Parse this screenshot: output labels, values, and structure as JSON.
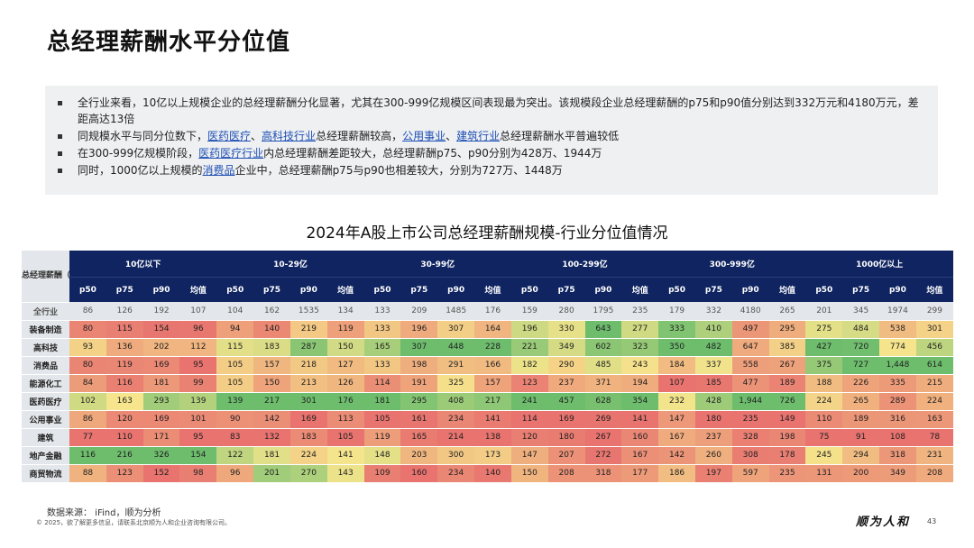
{
  "page_title": "总经理薪酬水平分位值",
  "bullets": [
    {
      "parts": [
        {
          "t": "全行业来看，10亿以上规模企业的总经理薪酬分化显著，尤其在300-999亿规模区间表现最为突出。该规模段企业总经理薪酬的p75和p90值分别达到332万元和4180万元，差距高达13倍",
          "hl": false
        }
      ]
    },
    {
      "parts": [
        {
          "t": "同规模水平与同分位数下，",
          "hl": false
        },
        {
          "t": "医药医疗",
          "hl": true
        },
        {
          "t": "、",
          "hl": false
        },
        {
          "t": "高科技行业",
          "hl": true
        },
        {
          "t": "总经理薪酬较高，",
          "hl": false
        },
        {
          "t": "公用事业",
          "hl": true
        },
        {
          "t": "、",
          "hl": false
        },
        {
          "t": "建筑行业",
          "hl": true
        },
        {
          "t": "总经理薪酬水平普遍较低",
          "hl": false
        }
      ]
    },
    {
      "parts": [
        {
          "t": "在300-999亿规模阶段，",
          "hl": false
        },
        {
          "t": "医药医疗行业",
          "hl": true
        },
        {
          "t": "内总经理薪酬差距较大，总经理薪酬p75、p90分别为428万、1944万",
          "hl": false
        }
      ]
    },
    {
      "parts": [
        {
          "t": "同时，1000亿以上规模的",
          "hl": false
        },
        {
          "t": "消费品",
          "hl": true
        },
        {
          "t": "企业中，总经理薪酬p75与p90也相差较大，分别为727万、1448万",
          "hl": false
        }
      ]
    }
  ],
  "table_title": "2024年A股上市公司总经理薪酬规模-行业分位值情况",
  "corner_label": "总经理薪酬（万元）",
  "groups": [
    "10亿以下",
    "10-29亿",
    "30-99亿",
    "100-299亿",
    "300-999亿",
    "1000亿以上"
  ],
  "metrics": [
    "p50",
    "p75",
    "p90",
    "均值"
  ],
  "all_row": {
    "label": "全行业",
    "values": [
      "86",
      "126",
      "192",
      "107",
      "104",
      "162",
      "1535",
      "134",
      "133",
      "209",
      "1485",
      "176",
      "159",
      "280",
      "1795",
      "235",
      "179",
      "332",
      "4180",
      "265",
      "201",
      "345",
      "1974",
      "299"
    ]
  },
  "rows": [
    {
      "label": "装备制造",
      "values": [
        "80",
        "115",
        "154",
        "96",
        "94",
        "140",
        "219",
        "119",
        "133",
        "196",
        "307",
        "164",
        "196",
        "330",
        "643",
        "277",
        "333",
        "410",
        "497",
        "295",
        "275",
        "484",
        "538",
        "301"
      ]
    },
    {
      "label": "高科技",
      "values": [
        "93",
        "136",
        "202",
        "112",
        "115",
        "183",
        "287",
        "150",
        "165",
        "307",
        "448",
        "228",
        "221",
        "349",
        "602",
        "323",
        "350",
        "482",
        "647",
        "385",
        "427",
        "720",
        "774",
        "456"
      ]
    },
    {
      "label": "消费品",
      "values": [
        "80",
        "119",
        "169",
        "95",
        "105",
        "157",
        "218",
        "127",
        "133",
        "198",
        "291",
        "166",
        "182",
        "290",
        "485",
        "243",
        "184",
        "337",
        "558",
        "267",
        "375",
        "727",
        "1,448",
        "614"
      ]
    },
    {
      "label": "能源化工",
      "values": [
        "84",
        "116",
        "181",
        "99",
        "105",
        "150",
        "213",
        "126",
        "114",
        "191",
        "325",
        "157",
        "123",
        "237",
        "371",
        "194",
        "107",
        "185",
        "477",
        "189",
        "188",
        "226",
        "335",
        "215"
      ]
    },
    {
      "label": "医药医疗",
      "values": [
        "102",
        "163",
        "293",
        "139",
        "139",
        "217",
        "301",
        "176",
        "181",
        "295",
        "408",
        "217",
        "241",
        "457",
        "628",
        "354",
        "232",
        "428",
        "1,944",
        "726",
        "224",
        "265",
        "289",
        "224"
      ]
    },
    {
      "label": "公用事业",
      "values": [
        "86",
        "120",
        "169",
        "101",
        "90",
        "142",
        "169",
        "113",
        "105",
        "161",
        "234",
        "141",
        "114",
        "169",
        "269",
        "141",
        "147",
        "180",
        "235",
        "149",
        "110",
        "189",
        "316",
        "163"
      ]
    },
    {
      "label": "建筑",
      "values": [
        "77",
        "110",
        "171",
        "95",
        "83",
        "132",
        "183",
        "105",
        "119",
        "165",
        "214",
        "138",
        "120",
        "180",
        "267",
        "160",
        "167",
        "237",
        "328",
        "198",
        "75",
        "91",
        "108",
        "78"
      ]
    },
    {
      "label": "地产金融",
      "values": [
        "116",
        "216",
        "326",
        "154",
        "122",
        "181",
        "224",
        "141",
        "148",
        "203",
        "300",
        "173",
        "147",
        "207",
        "272",
        "167",
        "142",
        "260",
        "308",
        "178",
        "245",
        "294",
        "318",
        "231"
      ]
    },
    {
      "label": "商贸物流",
      "values": [
        "88",
        "123",
        "152",
        "98",
        "96",
        "201",
        "270",
        "143",
        "109",
        "160",
        "234",
        "140",
        "150",
        "208",
        "318",
        "177",
        "186",
        "197",
        "597",
        "235",
        "131",
        "200",
        "349",
        "208"
      ]
    }
  ],
  "heat_colors": {
    "low": "#e8736f",
    "mid": "#f6e58c",
    "high": "#6dbd6d",
    "header_bg": "#0f2460",
    "label_bg": "#e3e6ea",
    "link_color": "#1f4fb4"
  },
  "source_note": "数据来源： iFind，顺为分析",
  "copyright": "© 2025，欲了解更多信息，请联系北京顺为人和企业咨询有限公司。",
  "logo_text": "顺为人和",
  "page_number": "43"
}
